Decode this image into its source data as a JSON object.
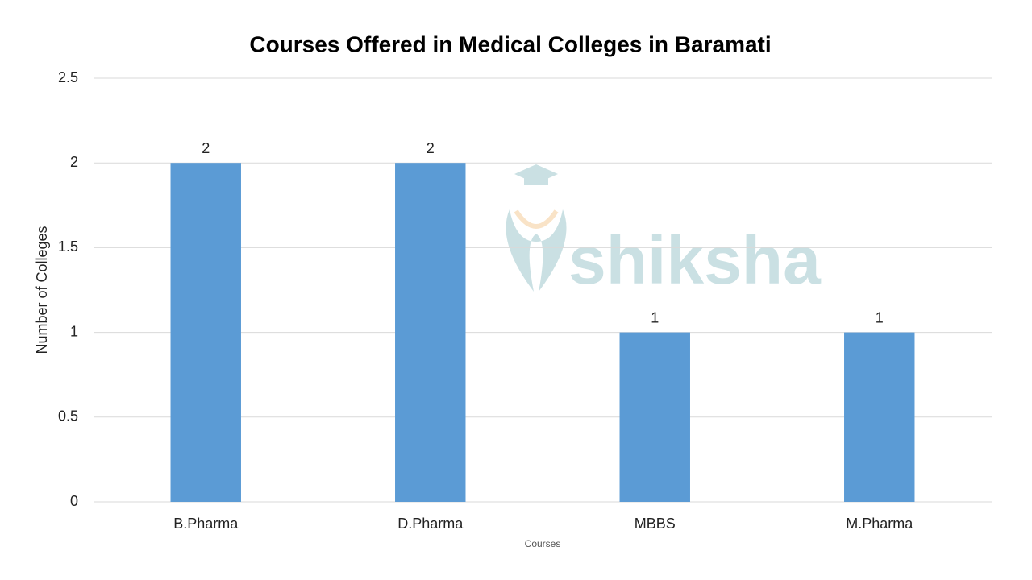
{
  "chart_data": {
    "type": "bar",
    "title": "Courses Offered in Medical Colleges in Baramati",
    "x_label": "Courses",
    "y_label": "Number of Colleges",
    "categories": [
      "B.Pharma",
      "D.Pharma",
      "MBBS",
      "M.Pharma"
    ],
    "values": [
      2,
      2,
      1,
      1
    ],
    "color": "#5b9bd5",
    "ylim": [
      0,
      2.5
    ],
    "yticks": [
      0,
      0.5,
      1,
      1.5,
      2,
      2.5
    ],
    "grid": true,
    "watermark": "shiksha"
  }
}
